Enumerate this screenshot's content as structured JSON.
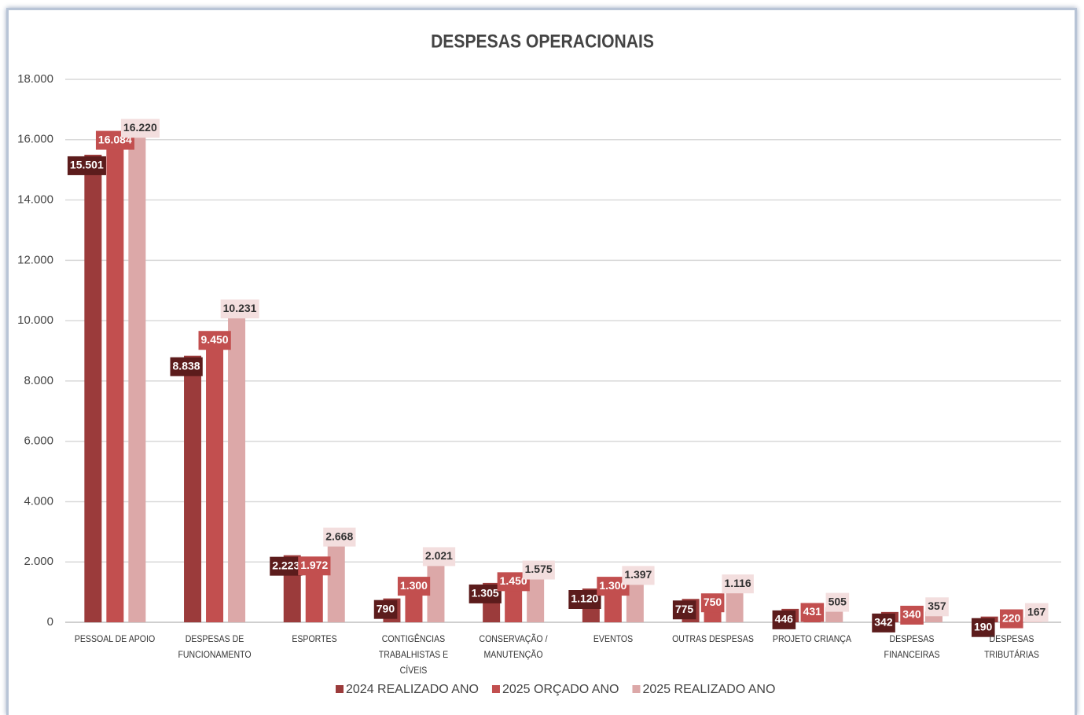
{
  "chart_data": {
    "type": "bar",
    "title": "DESPESAS OPERACIONAIS",
    "categories": [
      "PESSOAL DE APOIO",
      "DESPESAS DE FUNCIONAMENTO",
      "ESPORTES",
      "CONTIGÊNCIAS TRABALHISTAS E CÍVEIS",
      "CONSERVAÇÃO / MANUTENÇÃO",
      "EVENTOS",
      "OUTRAS DESPESAS",
      "PROJETO CRIANÇA",
      "DESPESAS FINANCEIRAS",
      "DESPESAS TRIBUTÁRIAS"
    ],
    "series": [
      {
        "name": "2024 REALIZADO ANO",
        "color": "#9b3b3b",
        "label_bg": "#5c1c1c",
        "label_color": "#ffffff",
        "values": [
          15501,
          8838,
          2223,
          790,
          1305,
          1120,
          775,
          446,
          342,
          190
        ],
        "value_labels": [
          "15.501",
          "8.838",
          "2.223",
          "790",
          "1.305",
          "1.120",
          "775",
          "446",
          "342",
          "190"
        ]
      },
      {
        "name": "2025 ORÇADO ANO",
        "color": "#c24f4f",
        "label_bg": "#c24f4f",
        "label_color": "#ffffff",
        "values": [
          16084,
          9450,
          1972,
          1300,
          1450,
          1300,
          750,
          431,
          340,
          220
        ],
        "value_labels": [
          "16.084",
          "9.450",
          "1.972",
          "1.300",
          "1.450",
          "1.300",
          "750",
          "431",
          "340",
          "220"
        ]
      },
      {
        "name": "2025 REALIZADO ANO",
        "color": "#dca8a8",
        "label_bg": "#f3dede",
        "label_color": "#333333",
        "values": [
          16220,
          10231,
          2668,
          2021,
          1575,
          1397,
          1116,
          505,
          357,
          167
        ],
        "value_labels": [
          "16.220",
          "10.231",
          "2.668",
          "2.021",
          "1.575",
          "1.397",
          "1.116",
          "505",
          "357",
          "167"
        ]
      }
    ],
    "ylim": [
      0,
      18000
    ],
    "yticks": [
      0,
      {
        "value": 2000,
        "label": "2.000"
      },
      {
        "value": 4000,
        "label": "4.000"
      },
      {
        "value": 6000,
        "label": "6.000"
      },
      {
        "value": 8000,
        "label": "8.000"
      },
      {
        "value": 10000,
        "label": "10.000"
      },
      {
        "value": 12000,
        "label": "12.000"
      },
      {
        "value": 14000,
        "label": "14.000"
      },
      {
        "value": 16000,
        "label": "16.000"
      },
      {
        "value": 18000,
        "label": "18.000"
      }
    ],
    "grid": true,
    "legend": "bottom"
  }
}
